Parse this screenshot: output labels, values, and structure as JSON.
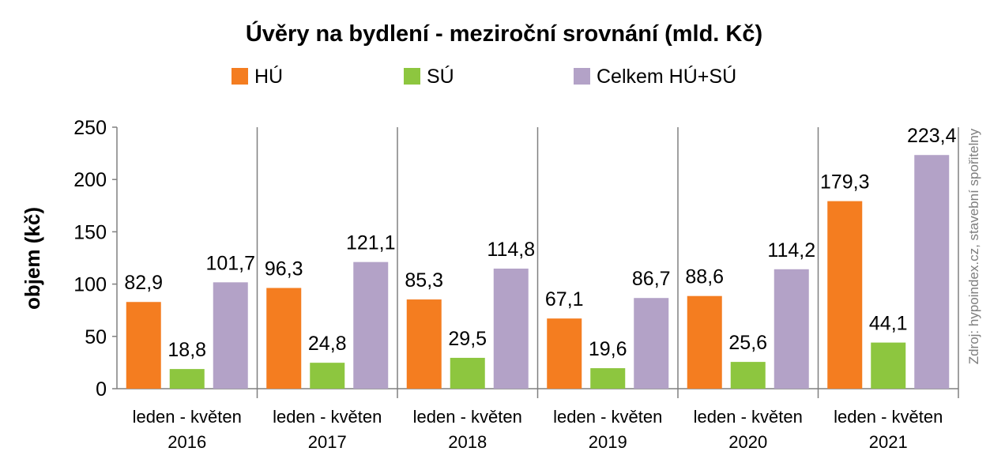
{
  "chart_data": {
    "type": "bar",
    "title": "Úvěry na bydlení - meziroční srovnání (mld. Kč)",
    "ylabel": "objem (kč)",
    "xlabel": "",
    "ylim": [
      0,
      250
    ],
    "yticks": [
      0,
      50,
      100,
      150,
      200,
      250
    ],
    "grid": false,
    "legend": "top",
    "source_note": "Zdroj: hypoindex.cz, stavební spořitelny",
    "categories": [
      [
        "leden - květen",
        "2016"
      ],
      [
        "leden - květen",
        "2017"
      ],
      [
        "leden - květen",
        "2018"
      ],
      [
        "leden - květen",
        "2019"
      ],
      [
        "leden - květen",
        "2020"
      ],
      [
        "leden - květen",
        "2021"
      ]
    ],
    "series": [
      {
        "name": "HÚ",
        "color": "#F47D20",
        "values": [
          82.9,
          96.3,
          85.3,
          67.1,
          88.6,
          179.3
        ],
        "labels": [
          "82,9",
          "96,3",
          "85,3",
          "67,1",
          "88,6",
          "179,3"
        ]
      },
      {
        "name": "SÚ",
        "color": "#8DC63F",
        "values": [
          18.8,
          24.8,
          29.5,
          19.6,
          25.6,
          44.1
        ],
        "labels": [
          "18,8",
          "24,8",
          "29,5",
          "19,6",
          "25,6",
          "44,1"
        ]
      },
      {
        "name": "Celkem HÚ+SÚ",
        "color": "#B3A2C7",
        "values": [
          101.7,
          121.1,
          114.8,
          86.7,
          114.2,
          223.4
        ],
        "labels": [
          "101,7",
          "121,1",
          "114,8",
          "86,7",
          "114,2",
          "223,4"
        ]
      }
    ]
  }
}
